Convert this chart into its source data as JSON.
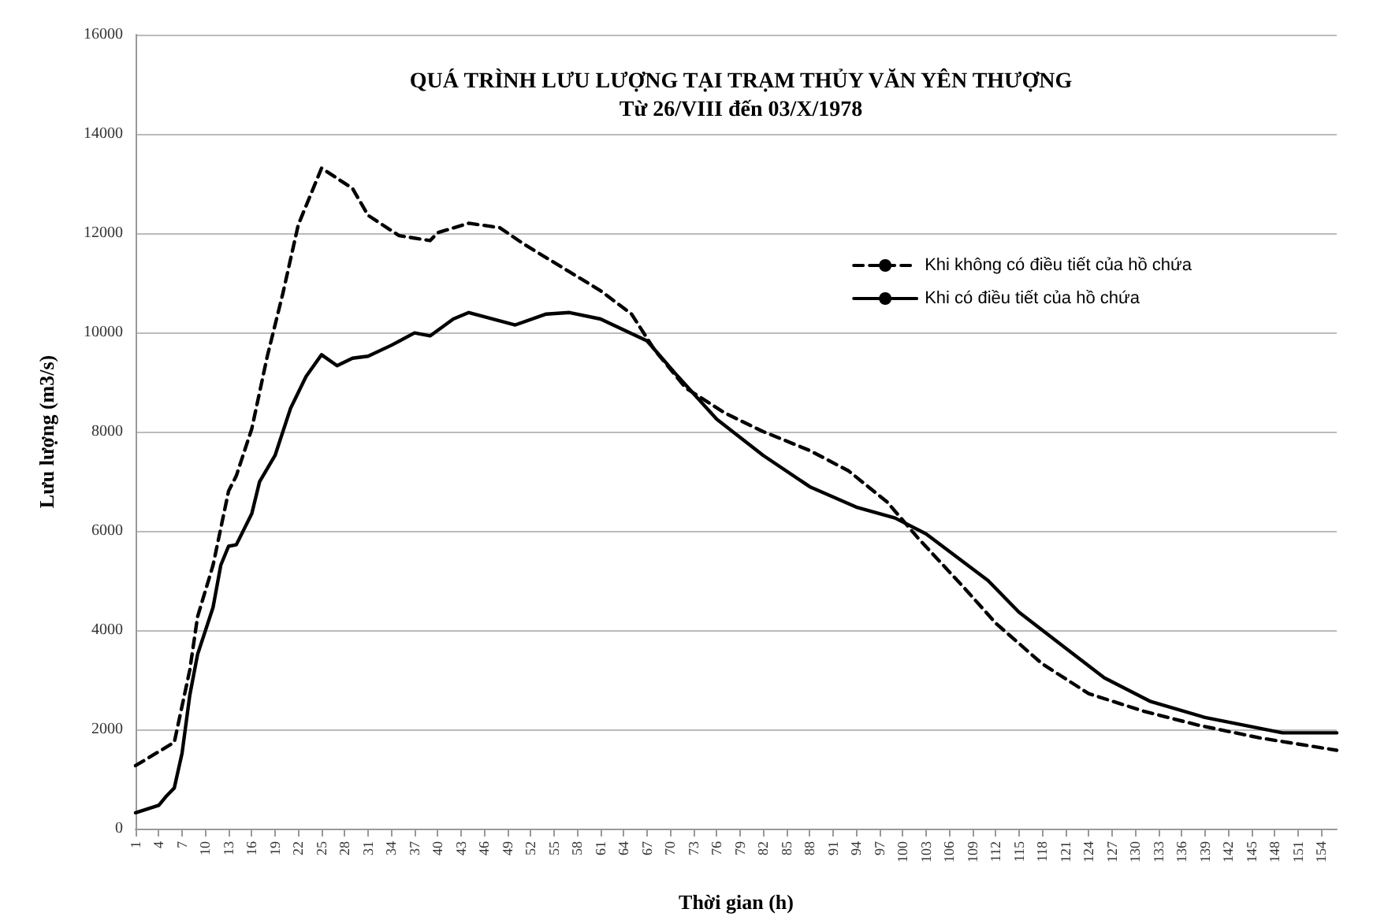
{
  "chart_data": {
    "type": "line",
    "title": "QUÁ TRÌNH LƯU LƯỢNG TẠI TRẠM THỦY VĂN YÊN THƯỢNG",
    "subtitle": "Từ 26/VIII đến 03/X/1978",
    "xlabel": "Thời gian (h)",
    "ylabel": "Lưu lượng (m3/s)",
    "xlim": [
      1,
      156
    ],
    "xticks": [
      1,
      4,
      7,
      10,
      13,
      16,
      19,
      22,
      25,
      28,
      31,
      34,
      37,
      40,
      43,
      46,
      49,
      52,
      55,
      58,
      61,
      64,
      67,
      70,
      73,
      76,
      79,
      82,
      85,
      88,
      91,
      94,
      97,
      100,
      103,
      106,
      109,
      112,
      115,
      118,
      121,
      124,
      127,
      130,
      133,
      136,
      139,
      142,
      145,
      148,
      151,
      154
    ],
    "ylim": [
      0,
      16000
    ],
    "yticks": [
      0,
      2000,
      4000,
      6000,
      8000,
      10000,
      12000,
      14000,
      16000
    ],
    "grid": "y",
    "legend": "top right",
    "marker": "none",
    "series": [
      {
        "name": "Khi không có điều tiết của hồ chứa",
        "color": "#000000",
        "line_style": "dashed",
        "x": [
          1,
          6,
          8,
          9,
          11,
          13,
          14,
          16,
          18,
          20,
          22,
          25,
          29,
          31,
          35,
          39,
          40,
          44,
          48,
          51,
          53,
          57,
          61,
          65,
          68,
          72,
          77,
          82,
          88,
          93,
          98,
          102,
          108,
          112,
          118,
          124,
          131,
          138,
          146,
          156
        ],
        "values": [
          1270,
          1740,
          3200,
          4270,
          5310,
          6800,
          7110,
          8060,
          9520,
          10780,
          12170,
          13310,
          12900,
          12360,
          11950,
          11850,
          12010,
          12200,
          12110,
          11790,
          11600,
          11220,
          10840,
          10370,
          9640,
          8880,
          8380,
          8000,
          7620,
          7210,
          6580,
          5850,
          4840,
          4140,
          3320,
          2720,
          2370,
          2090,
          1830,
          1580
        ]
      },
      {
        "name": "Khi có điều tiết của hồ chứa",
        "color": "#000000",
        "line_style": "solid",
        "x": [
          1,
          4,
          5,
          6,
          7,
          8,
          9,
          11,
          12,
          13,
          14,
          16,
          17,
          19,
          21,
          23,
          25,
          27,
          29,
          31,
          34,
          37,
          39,
          42,
          44,
          50,
          54,
          57,
          61,
          67,
          71,
          76,
          82,
          88,
          94,
          99,
          103,
          111,
          115,
          121,
          126,
          132,
          139,
          149,
          156
        ],
        "values": [
          320,
          470,
          660,
          820,
          1520,
          2690,
          3510,
          4460,
          5310,
          5690,
          5720,
          6350,
          6990,
          7520,
          8470,
          9110,
          9550,
          9330,
          9480,
          9520,
          9740,
          9990,
          9930,
          10270,
          10400,
          10150,
          10370,
          10400,
          10270,
          9830,
          9110,
          8250,
          7520,
          6890,
          6480,
          6260,
          5940,
          5000,
          4360,
          3640,
          3040,
          2560,
          2240,
          1930,
          1930
        ]
      }
    ]
  }
}
